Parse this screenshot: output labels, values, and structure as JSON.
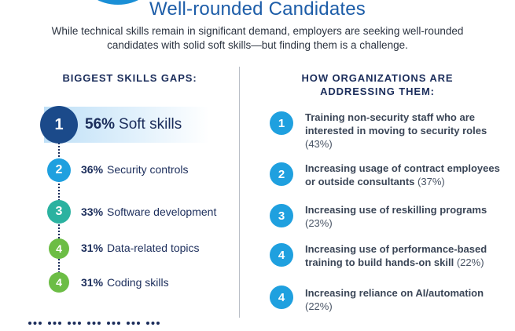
{
  "header": {
    "title": "Well-rounded Candidates",
    "subtitle": "While technical skills remain in significant demand, employers are seeking well-rounded candidates with solid soft skills—but finding them is a challenge."
  },
  "left": {
    "heading": "BIGGEST SKILLS GAPS:",
    "items": [
      {
        "rank": "1",
        "pct": "56%",
        "label": "Soft skills",
        "color": "#1b4a8a"
      },
      {
        "rank": "2",
        "pct": "36%",
        "label": "Security controls",
        "color": "#1fa0df"
      },
      {
        "rank": "3",
        "pct": "33%",
        "label": "Software development",
        "color": "#2bb2a0"
      },
      {
        "rank": "4",
        "pct": "31%",
        "label": "Data-related topics",
        "color": "#6cbd45"
      },
      {
        "rank": "4",
        "pct": "31%",
        "label": "Coding skills",
        "color": "#6cbd45"
      }
    ]
  },
  "right": {
    "heading_line1": "HOW ORGANIZATIONS ARE",
    "heading_line2": "ADDRESSING THEM:",
    "items": [
      {
        "rank": "1",
        "line1": "Training non-security staff who are",
        "line2": "interested in moving to security roles",
        "pct": "(43%)"
      },
      {
        "rank": "2",
        "line1": "Increasing usage of contract employees",
        "line2": "or outside consultants",
        "pct": "(37%)"
      },
      {
        "rank": "3",
        "line1": "Increasing use of reskilling programs",
        "line2": "",
        "pct": "(23%)"
      },
      {
        "rank": "4",
        "line1": "Increasing use of performance-based",
        "line2": "training to build hands-on skill",
        "pct": "(22%)"
      },
      {
        "rank": "4",
        "line1": "Increasing reliance on AI/automation",
        "line2": "",
        "pct": "(22%)"
      }
    ]
  }
}
